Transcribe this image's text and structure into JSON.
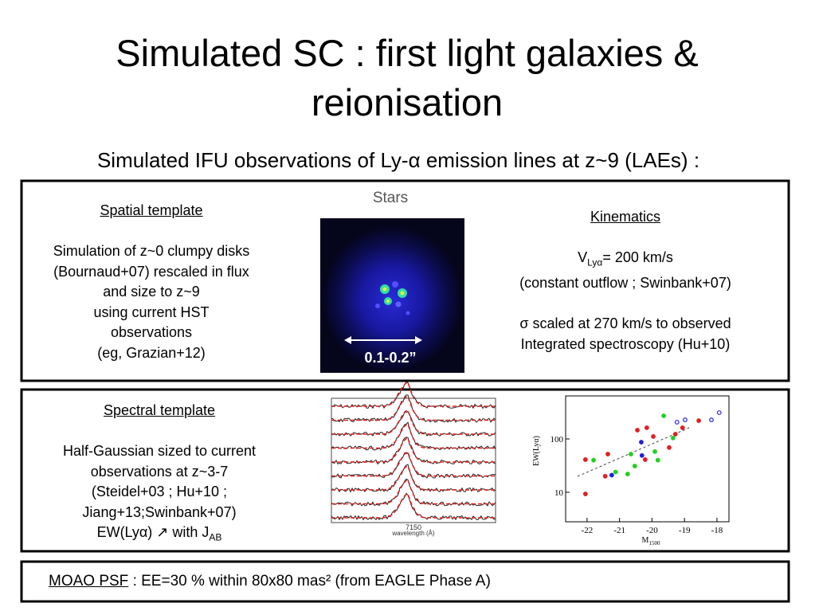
{
  "title": "Simulated SC : first light galaxies & reionisation",
  "subtitle": "Simulated IFU observations of Ly-α emission lines at z~9 (LAEs) :",
  "spatial": {
    "heading": "Spatial template",
    "lines": [
      "Simulation of z~0 clumpy disks",
      "(Bournaud+07) rescaled in flux",
      "and size to z~9",
      "using current HST",
      "observations",
      "(eg, Grazian+12)"
    ],
    "image_title": "Stars",
    "scale_label": "0.1-0.2”"
  },
  "kinematics": {
    "heading": "Kinematics",
    "velocity": {
      "symbol": "V",
      "sub": "Lyα",
      "rest": "= 200 km/s"
    },
    "lines": [
      "(constant outflow ; Swinbank+07)",
      "σ scaled at 270 km/s to observed",
      "Integrated spectroscopy (Hu+10)"
    ]
  },
  "spectral": {
    "heading": "Spectral template",
    "lines": [
      "Half-Gaussian sized to current",
      "observations at z~3-7",
      "(Steidel+03 ; Hu+10 ;",
      "Jiang+13;Swinbank+07)"
    ],
    "last_line": {
      "text": "EW(Lyα) ↗ with J",
      "sub": "AB"
    },
    "spectra_plot": {
      "x_tick": "7150",
      "x_label": "wavelength (Å)"
    }
  },
  "chart_data": {
    "type": "scatter",
    "x_label": "M",
    "x_label_sub": "1500",
    "y_label": "EW(Lyα)",
    "xlim": [
      -22.66,
      -17.63
    ],
    "ylim": [
      2.8,
      640
    ],
    "log_y": true,
    "xticks": [
      -22,
      -21,
      -20,
      -19,
      -18
    ],
    "yticks": [
      10,
      100
    ],
    "x": [
      -22.05,
      -21.8,
      -21.36,
      -22.05,
      -21.24,
      -21.12,
      -20.75,
      -20.65,
      -20.33,
      -20.45,
      -20.16,
      -19.96,
      -19.91,
      -19.82,
      -20.21,
      -19.47,
      -19.28,
      -19.06,
      -18.98,
      -18.56,
      -18.17,
      -17.93,
      -19.64,
      -19.23,
      -20.31,
      -21.44,
      -20.53,
      -19.35
    ],
    "values": [
      41,
      40,
      52,
      9.3,
      21,
      24,
      22,
      52,
      87,
      146,
      162,
      111,
      58,
      40,
      41,
      69,
      123,
      162,
      228,
      220,
      228,
      311,
      271,
      206,
      49,
      20,
      31,
      104
    ],
    "colors": [
      "#e02020",
      "#20d020",
      "#e02020",
      "#e02020",
      "#2020e0",
      "#20d020",
      "#20d020",
      "#20d020",
      "#2020e0",
      "#e02020",
      "#e02020",
      "#e02020",
      "#20d020",
      "#20d020",
      "#e02020",
      "#e02020",
      "#e02020",
      "#e02020",
      "#2020e0",
      "#e02020",
      "#2020e0",
      "#2020e0",
      "#20d020",
      "#2020e0",
      "#2020e0",
      "#e02020",
      "#20d020",
      "#20d020"
    ]
  },
  "footer": {
    "link": "MOAO PSF",
    "text": " : EE=30 % within 80x80 mas² (from EAGLE Phase A)"
  }
}
